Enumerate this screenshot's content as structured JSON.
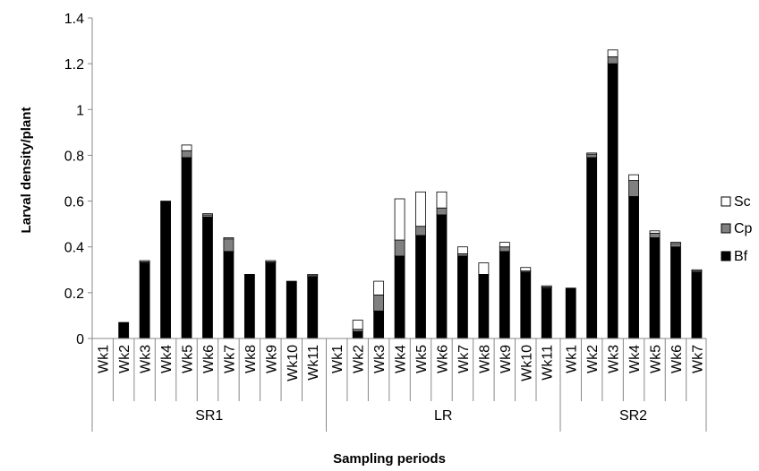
{
  "chart_data": {
    "type": "bar",
    "stacked": true,
    "ylabel": "Larval density/plant",
    "xlabel": "Sampling periods",
    "ylim": [
      0,
      1.4
    ],
    "yticks": [
      "0",
      "0.2",
      "0.4",
      "0.6",
      "0.8",
      "1",
      "1.2",
      "1.4"
    ],
    "grid": false,
    "legend_position": "right",
    "legend": [
      {
        "name": "Sc",
        "color": "#ffffff"
      },
      {
        "name": "Cp",
        "color": "#808080"
      },
      {
        "name": "Bf",
        "color": "#000000"
      }
    ],
    "groups": [
      {
        "name": "SR1",
        "categories": [
          "Wk1",
          "Wk2",
          "Wk3",
          "Wk4",
          "Wk5",
          "Wk6",
          "Wk7",
          "Wk8",
          "Wk9",
          "Wk10",
          "Wk11"
        ],
        "series": [
          {
            "name": "Bf",
            "values": [
              0,
              0.07,
              0.33,
              0.6,
              0.79,
              0.53,
              0.38,
              0.28,
              0.33,
              0.25,
              0.27
            ]
          },
          {
            "name": "Cp",
            "values": [
              0,
              0,
              0.005,
              0,
              0.03,
              0.01,
              0.055,
              0,
              0.005,
              0,
              0.005
            ]
          },
          {
            "name": "Sc",
            "values": [
              0,
              0,
              0.005,
              0,
              0.025,
              0.005,
              0.005,
              0,
              0.005,
              0,
              0.005
            ]
          }
        ]
      },
      {
        "name": "LR",
        "categories": [
          "Wk1",
          "Wk2",
          "Wk3",
          "Wk4",
          "Wk5",
          "Wk6",
          "Wk7",
          "Wk8",
          "Wk9",
          "Wk10",
          "Wk11"
        ],
        "series": [
          {
            "name": "Bf",
            "values": [
              0,
              0.03,
              0.12,
              0.36,
              0.45,
              0.54,
              0.36,
              0.28,
              0.38,
              0.29,
              0.22
            ]
          },
          {
            "name": "Cp",
            "values": [
              0,
              0.01,
              0.07,
              0.07,
              0.04,
              0.03,
              0.01,
              0,
              0.02,
              0.005,
              0.005
            ]
          },
          {
            "name": "Sc",
            "values": [
              0,
              0.04,
              0.06,
              0.18,
              0.15,
              0.07,
              0.03,
              0.05,
              0.02,
              0.015,
              0.005
            ]
          }
        ]
      },
      {
        "name": "SR2",
        "categories": [
          "Wk1",
          "Wk2",
          "Wk3",
          "Wk4",
          "Wk5",
          "Wk6",
          "Wk7"
        ],
        "series": [
          {
            "name": "Bf",
            "values": [
              0.22,
              0.79,
              1.2,
              0.62,
              0.44,
              0.4,
              0.29
            ]
          },
          {
            "name": "Cp",
            "values": [
              0,
              0.015,
              0.03,
              0.07,
              0.02,
              0.015,
              0.005
            ]
          },
          {
            "name": "Sc",
            "values": [
              0,
              0.005,
              0.03,
              0.025,
              0.01,
              0.005,
              0.005
            ]
          }
        ]
      }
    ]
  }
}
